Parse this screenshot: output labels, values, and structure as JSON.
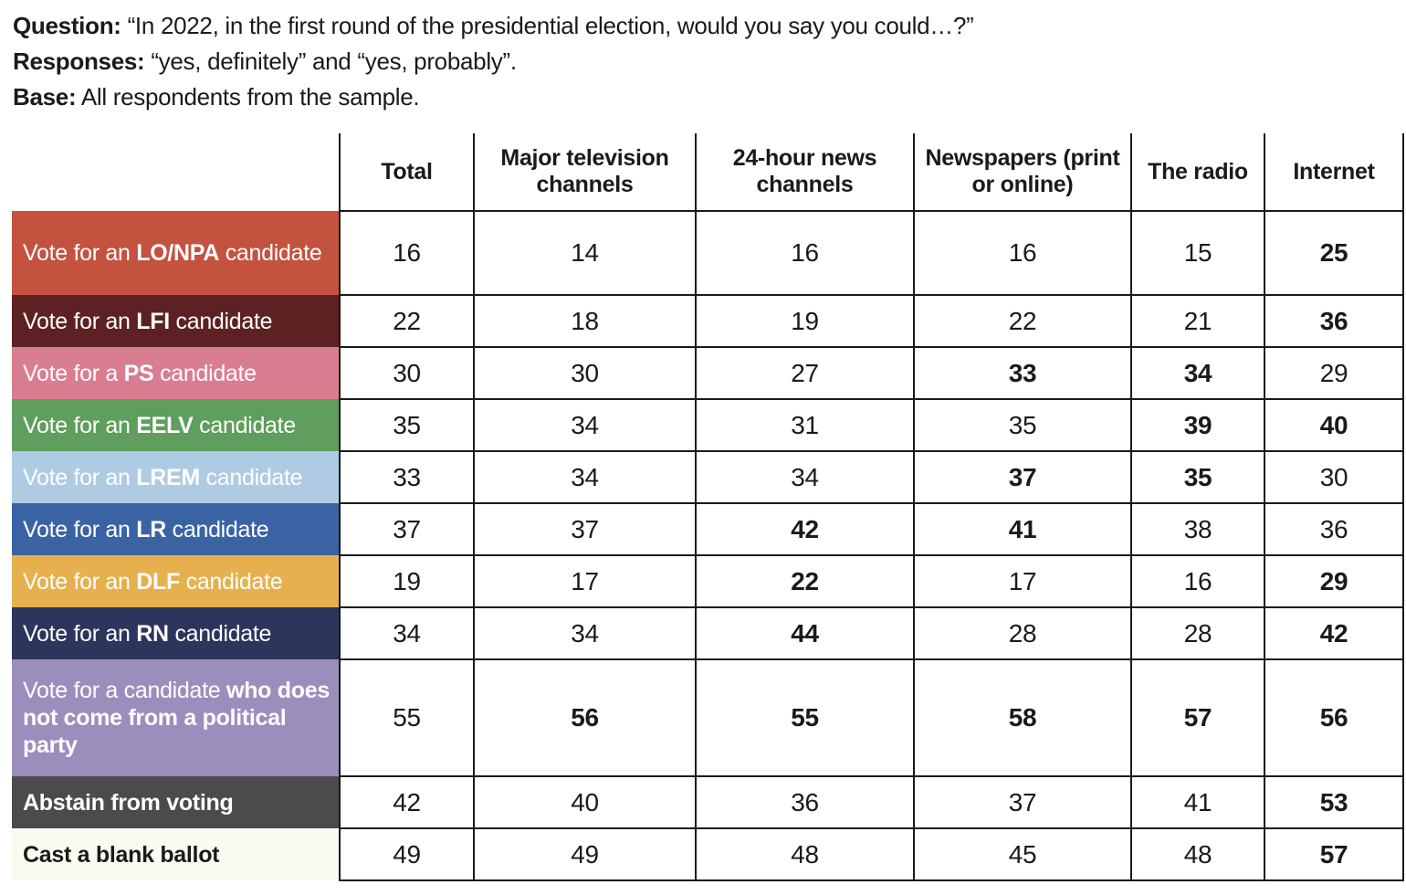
{
  "intro": {
    "lines": [
      {
        "label": "Question:",
        "text": "“In 2022, in the first round of the presidential election, would you say you could…?”"
      },
      {
        "label": "Responses:",
        "text": "“yes, definitely” and “yes, probably”."
      },
      {
        "label": "Base:",
        "text": "All respondents from the sample."
      }
    ]
  },
  "colors": {
    "border": "#1a1a1a",
    "page_background": "#ffffff",
    "body_text": "#1a1a1a"
  },
  "chart_data": {
    "type": "table",
    "columns": [
      "Total",
      "Major television channels",
      "24-hour news channels",
      "Newspapers (print or online)",
      "The radio",
      "Internet"
    ],
    "rows": [
      {
        "label": "Vote for an LO/NPA candidate",
        "label_segments": [
          {
            "t": "Vote for an ",
            "b": false
          },
          {
            "t": "LO/NPA",
            "b": true
          },
          {
            "t": " candidate",
            "b": false
          }
        ],
        "bg": "#C3523F",
        "fg": "#FFFFFF",
        "values": [
          16,
          14,
          16,
          16,
          15,
          25
        ],
        "bold": [
          false,
          false,
          false,
          false,
          false,
          true
        ]
      },
      {
        "label": "Vote for an LFI candidate",
        "label_segments": [
          {
            "t": "Vote for an ",
            "b": false
          },
          {
            "t": "LFI",
            "b": true
          },
          {
            "t": " candidate",
            "b": false
          }
        ],
        "bg": "#5D2123",
        "fg": "#FFFFFF",
        "values": [
          22,
          18,
          19,
          22,
          21,
          36
        ],
        "bold": [
          false,
          false,
          false,
          false,
          false,
          true
        ]
      },
      {
        "label": "Vote for a PS candidate",
        "label_segments": [
          {
            "t": "Vote for a ",
            "b": false
          },
          {
            "t": "PS",
            "b": true
          },
          {
            "t": " candidate",
            "b": false
          }
        ],
        "bg": "#D97D91",
        "fg": "#FFFFFF",
        "values": [
          30,
          30,
          27,
          33,
          34,
          29
        ],
        "bold": [
          false,
          false,
          false,
          true,
          true,
          false
        ]
      },
      {
        "label": "Vote for an EELV candidate",
        "label_segments": [
          {
            "t": "Vote for an ",
            "b": false
          },
          {
            "t": "EELV",
            "b": true
          },
          {
            "t": " candidate",
            "b": false
          }
        ],
        "bg": "#5F9E5C",
        "fg": "#FFFFFF",
        "values": [
          35,
          34,
          31,
          35,
          39,
          40
        ],
        "bold": [
          false,
          false,
          false,
          false,
          true,
          true
        ]
      },
      {
        "label": "Vote for an LREM candidate",
        "label_segments": [
          {
            "t": "Vote for an ",
            "b": false
          },
          {
            "t": "LREM",
            "b": true
          },
          {
            "t": " candidate",
            "b": false
          }
        ],
        "bg": "#AFCBE4",
        "fg": "#FFFFFF",
        "values": [
          33,
          34,
          34,
          37,
          35,
          30
        ],
        "bold": [
          false,
          false,
          false,
          true,
          true,
          false
        ]
      },
      {
        "label": "Vote for an LR candidate",
        "label_segments": [
          {
            "t": "Vote for an ",
            "b": false
          },
          {
            "t": "LR",
            "b": true
          },
          {
            "t": " candidate",
            "b": false
          }
        ],
        "bg": "#3A63A4",
        "fg": "#FFFFFF",
        "values": [
          37,
          37,
          42,
          41,
          38,
          36
        ],
        "bold": [
          false,
          false,
          true,
          true,
          false,
          false
        ]
      },
      {
        "label": "Vote for an DLF candidate",
        "label_segments": [
          {
            "t": "Vote for an ",
            "b": false
          },
          {
            "t": "DLF",
            "b": true
          },
          {
            "t": " candidate",
            "b": false
          }
        ],
        "bg": "#E7B04F",
        "fg": "#FFFFFF",
        "values": [
          19,
          17,
          22,
          17,
          16,
          29
        ],
        "bold": [
          false,
          false,
          true,
          false,
          false,
          true
        ]
      },
      {
        "label": "Vote for an RN candidate",
        "label_segments": [
          {
            "t": "Vote for an ",
            "b": false
          },
          {
            "t": "RN",
            "b": true
          },
          {
            "t": " candidate",
            "b": false
          }
        ],
        "bg": "#2C355C",
        "fg": "#FFFFFF",
        "values": [
          34,
          34,
          44,
          28,
          28,
          42
        ],
        "bold": [
          false,
          false,
          true,
          false,
          false,
          true
        ]
      },
      {
        "label": "Vote for a candidate who does not come from a political party",
        "label_segments": [
          {
            "t": "Vote for a candidate ",
            "b": false
          },
          {
            "t": "who does not come from a political party",
            "b": true
          }
        ],
        "bg": "#9C8EBC",
        "fg": "#FFFFFF",
        "values": [
          55,
          56,
          55,
          58,
          57,
          56
        ],
        "bold": [
          false,
          true,
          true,
          true,
          true,
          true
        ]
      },
      {
        "label": "Abstain from voting",
        "label_segments": [
          {
            "t": "Abstain from voting",
            "b": true
          }
        ],
        "bg": "#4B4B4B",
        "fg": "#FFFFFF",
        "values": [
          42,
          40,
          36,
          37,
          41,
          53
        ],
        "bold": [
          false,
          false,
          false,
          false,
          false,
          true
        ]
      },
      {
        "label": "Cast a blank ballot",
        "label_segments": [
          {
            "t": "Cast a blank ballot",
            "b": true
          }
        ],
        "bg": "#FBFBF2",
        "fg": "#1A1A1A",
        "values": [
          49,
          49,
          48,
          45,
          48,
          57
        ],
        "bold": [
          false,
          false,
          false,
          false,
          false,
          true
        ]
      }
    ]
  }
}
